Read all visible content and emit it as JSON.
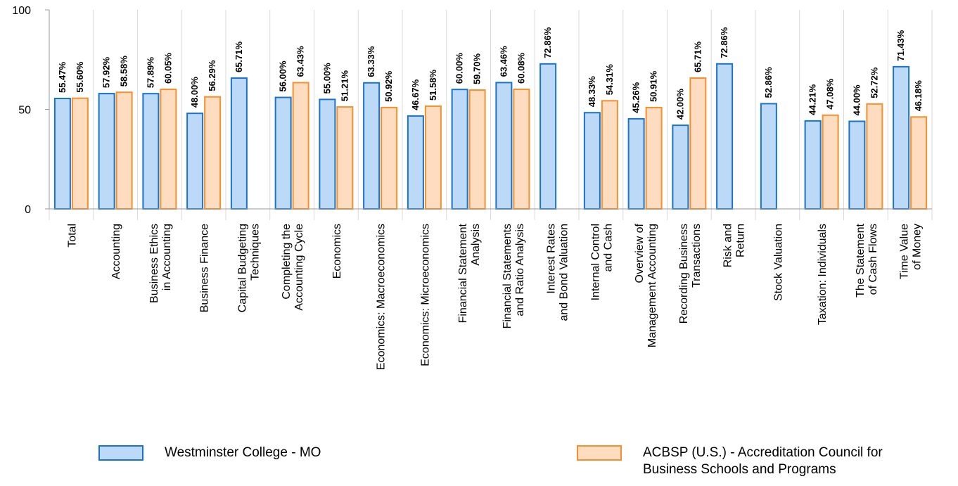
{
  "chart_data": {
    "type": "bar",
    "ylim": [
      0,
      100
    ],
    "yticks": [
      0,
      50,
      100
    ],
    "categories": [
      "Total",
      "Accounting",
      "Business Ethics\nin Accounting",
      "Business Finance",
      "Capital Budgeting\nTechniques",
      "Completing the\nAccounting Cycle",
      "Economics",
      "Economics: Macroeconomics",
      "Economics: Microeconomics",
      "Financial Statement\nAnalysis",
      "Financial Statements\nand Ratio Analysis",
      "Interest Rates\nand Bond Valuation",
      "Internal Control\nand Cash",
      "Overview of\nManagement Accounting",
      "Recording Business\nTransactions",
      "Risk and\nReturn",
      "Stock Valuation",
      "Taxation: Individuals",
      "The Statement\nof Cash Flows",
      "Time Value\nof Money"
    ],
    "series": [
      {
        "name": "Westminster College - MO",
        "color": "#1a73c9",
        "fill": "#bcdaf7",
        "values": [
          55.47,
          57.92,
          57.89,
          48.0,
          65.71,
          56.0,
          55.0,
          63.33,
          46.67,
          60.0,
          63.46,
          72.86,
          48.33,
          45.26,
          42.0,
          72.86,
          52.86,
          44.21,
          44.0,
          71.43
        ],
        "labels": [
          "55.47%",
          "57.92%",
          "57.89%",
          "48.00%",
          "65.71%",
          "56.00%",
          "55.00%",
          "63.33%",
          "46.67%",
          "60.00%",
          "63.46%",
          "72.86%",
          "48.33%",
          "45.26%",
          "42.00%",
          "72.86%",
          "52.86%",
          "44.21%",
          "44.00%",
          "71.43%"
        ]
      },
      {
        "name": "ACBSP (U.S.) - Accreditation Council for\nBusiness Schools and Programs",
        "color": "#f5902e",
        "fill": "#fddcc0",
        "values": [
          55.6,
          58.58,
          60.05,
          56.29,
          null,
          63.43,
          51.21,
          50.92,
          51.58,
          59.7,
          60.08,
          null,
          54.31,
          50.91,
          65.71,
          null,
          null,
          47.08,
          52.72,
          46.18
        ],
        "labels": [
          "55.60%",
          "58.58%",
          "60.05%",
          "56.29%",
          "",
          "63.43%",
          "51.21%",
          "50.92%",
          "51.58%",
          "59.70%",
          "60.08%",
          "",
          "54.31%",
          "50.91%",
          "65.71%",
          "",
          "",
          "47.08%",
          "52.72%",
          "46.18%"
        ]
      }
    ]
  },
  "legend": {
    "series0": "Westminster College - MO",
    "series1": "ACBSP (U.S.) - Accreditation Council for\nBusiness Schools and Programs"
  }
}
